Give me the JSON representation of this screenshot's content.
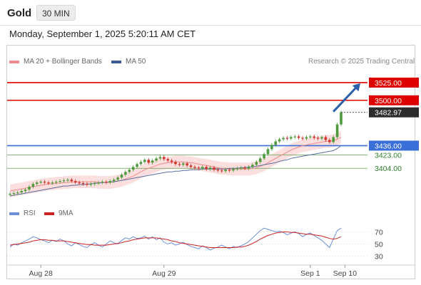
{
  "header": {
    "instrument": "Gold",
    "timeframe": "30 MIN",
    "datetime": "Monday, September 1, 2025 5:20:11 AM CET"
  },
  "credit": "Research © 2025 Trading Central",
  "colors": {
    "resistance": "#dd0000",
    "pivot": "#3a6fd8",
    "support": "#5aa04a",
    "last_price_bg": "#2c2c2c",
    "candle_up": "#4e9a3c",
    "candle_down": "#d0342c",
    "bollinger_fill": "#f7c3c3",
    "ma20": "#f08c8c",
    "ma50": "#5a6f9e",
    "arrow": "#2b5fa8",
    "rsi": "#6d8fd6",
    "rsi_ma": "#cc2222"
  },
  "chart_data": [
    {
      "type": "candlestick",
      "title": "Gold",
      "legend": [
        {
          "name": "MA 20 + Bollinger Bands",
          "color": "#f08c8c"
        },
        {
          "name": "MA 50",
          "color": "#3b5998"
        }
      ],
      "ylim": [
        3358,
        3545
      ],
      "x_tick_labels": [
        "Aug 28",
        "Aug 29",
        "Sep 1",
        "Sep 10"
      ],
      "x_ticks_at": [
        8,
        40,
        78,
        87
      ],
      "levels": [
        {
          "value": 3525.0,
          "label": "3525.00",
          "kind": "resistance"
        },
        {
          "value": 3500.0,
          "label": "3500.00",
          "kind": "resistance"
        },
        {
          "value": 3436.0,
          "label": "3436.00",
          "kind": "pivot"
        },
        {
          "value": 3423.0,
          "label": "3423.00",
          "kind": "support"
        },
        {
          "value": 3404.0,
          "label": "3404.00",
          "kind": "support"
        }
      ],
      "last_price": {
        "value": 3482.97,
        "label": "3482.97"
      },
      "forecast_arrow": {
        "from": [
          84,
          3484
        ],
        "to": [
          91,
          3524
        ]
      },
      "close": [
        3368,
        3369,
        3370,
        3372,
        3374,
        3378,
        3382,
        3384,
        3385,
        3384,
        3383,
        3384,
        3385,
        3386,
        3387,
        3388,
        3386,
        3384,
        3383,
        3382,
        3381,
        3382,
        3383,
        3384,
        3385,
        3384,
        3386,
        3388,
        3391,
        3395,
        3399,
        3402,
        3406,
        3410,
        3413,
        3416,
        3412,
        3415,
        3418,
        3420,
        3417,
        3415,
        3413,
        3410,
        3409,
        3411,
        3408,
        3406,
        3405,
        3404,
        3406,
        3403,
        3405,
        3402,
        3401,
        3400,
        3402,
        3401,
        3403,
        3404,
        3405,
        3404,
        3406,
        3409,
        3413,
        3418,
        3424,
        3431,
        3437,
        3442,
        3445,
        3447,
        3446,
        3448,
        3449,
        3447,
        3446,
        3448,
        3449,
        3447,
        3446,
        3448,
        3444,
        3441,
        3448,
        3466,
        3483
      ],
      "ma20": [
        3372,
        3373,
        3374,
        3375,
        3376,
        3377,
        3378,
        3379,
        3380,
        3381,
        3382,
        3382,
        3383,
        3383,
        3384,
        3384,
        3385,
        3385,
        3385,
        3385,
        3385,
        3385,
        3385,
        3384,
        3384,
        3384,
        3384,
        3385,
        3386,
        3387,
        3389,
        3391,
        3393,
        3396,
        3399,
        3402,
        3404,
        3406,
        3408,
        3410,
        3411,
        3412,
        3412,
        3413,
        3413,
        3413,
        3412,
        3412,
        3411,
        3410,
        3409,
        3408,
        3407,
        3406,
        3405,
        3404,
        3404,
        3403,
        3403,
        3403,
        3403,
        3403,
        3403,
        3404,
        3405,
        3407,
        3409,
        3412,
        3415,
        3418,
        3421,
        3424,
        3427,
        3430,
        3432,
        3434,
        3436,
        3437,
        3438,
        3439,
        3440,
        3441,
        3442,
        3442,
        3443,
        3445,
        3448
      ],
      "ma50": [
        3365,
        3366,
        3367,
        3368,
        3369,
        3370,
        3371,
        3372,
        3373,
        3374,
        3375,
        3376,
        3377,
        3378,
        3379,
        3379,
        3380,
        3380,
        3381,
        3381,
        3382,
        3382,
        3383,
        3383,
        3384,
        3384,
        3385,
        3385,
        3386,
        3387,
        3388,
        3389,
        3390,
        3391,
        3392,
        3393,
        3394,
        3395,
        3396,
        3397,
        3398,
        3399,
        3399,
        3400,
        3400,
        3401,
        3401,
        3402,
        3402,
        3402,
        3403,
        3403,
        3403,
        3403,
        3403,
        3403,
        3403,
        3404,
        3404,
        3404,
        3405,
        3405,
        3406,
        3406,
        3407,
        3408,
        3409,
        3410,
        3411,
        3412,
        3414,
        3415,
        3416,
        3418,
        3419,
        3420,
        3421,
        3422,
        3423,
        3424,
        3425,
        3426,
        3427,
        3428,
        3429,
        3432,
        3436
      ]
    },
    {
      "type": "line",
      "legend": [
        {
          "name": "RSI",
          "color": "#6d8fd6"
        },
        {
          "name": "9MA",
          "color": "#cc2222"
        }
      ],
      "ylim": [
        20,
        88
      ],
      "y_tick_labels": [
        "70",
        "50",
        "30"
      ],
      "y_ticks": [
        70,
        50,
        30
      ],
      "series": [
        {
          "name": "RSI",
          "values": [
            45,
            50,
            48,
            52,
            55,
            58,
            62,
            60,
            57,
            55,
            52,
            56,
            54,
            58,
            55,
            50,
            47,
            52,
            49,
            46,
            44,
            49,
            52,
            48,
            45,
            50,
            55,
            52,
            50,
            56,
            60,
            58,
            62,
            59,
            60,
            63,
            58,
            62,
            57,
            60,
            53,
            50,
            52,
            48,
            50,
            53,
            49,
            46,
            44,
            42,
            47,
            44,
            40,
            43,
            45,
            48,
            45,
            42,
            46,
            44,
            47,
            50,
            54,
            60,
            66,
            72,
            76,
            74,
            72,
            70,
            71,
            69,
            65,
            68,
            70,
            67,
            62,
            66,
            68,
            64,
            60,
            56,
            50,
            44,
            58,
            72,
            76
          ]
        },
        {
          "name": "9MA",
          "values": [
            48,
            49,
            50,
            51,
            52,
            53,
            55,
            56,
            57,
            57,
            56,
            56,
            55,
            55,
            55,
            54,
            53,
            52,
            51,
            50,
            49,
            49,
            48,
            48,
            48,
            48,
            49,
            50,
            51,
            52,
            54,
            55,
            57,
            58,
            59,
            60,
            60,
            60,
            60,
            59,
            58,
            57,
            55,
            54,
            52,
            51,
            50,
            49,
            48,
            47,
            46,
            45,
            44,
            44,
            44,
            44,
            44,
            44,
            44,
            45,
            45,
            46,
            48,
            51,
            54,
            58,
            61,
            64,
            66,
            68,
            69,
            70,
            70,
            69,
            69,
            68,
            67,
            66,
            66,
            65,
            64,
            63,
            61,
            59,
            58,
            59,
            62
          ]
        }
      ]
    }
  ]
}
